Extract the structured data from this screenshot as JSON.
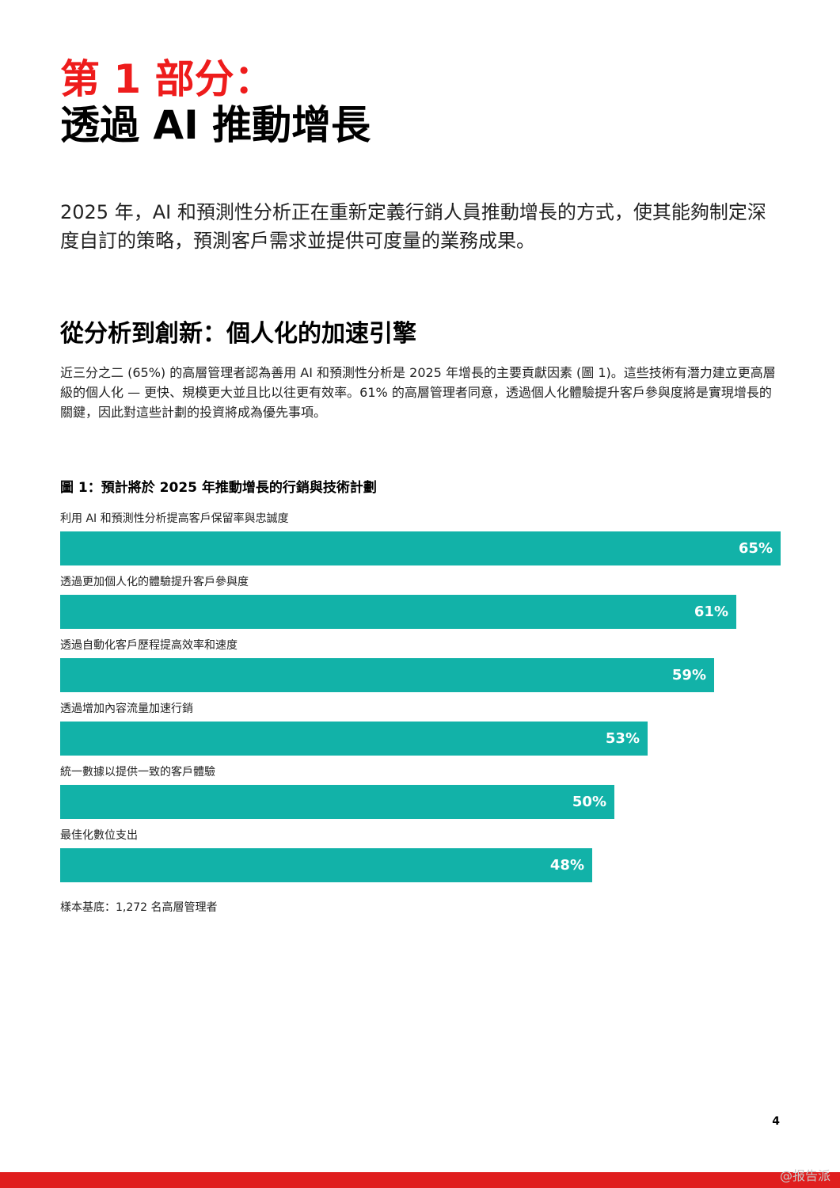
{
  "heading": {
    "line1": "第 1 部分：",
    "line2": "透過 AI 推動增長"
  },
  "intro": "2025 年，AI 和預測性分析正在重新定義行銷人員推動增長的方式，使其能夠制定深度自訂的策略，預測客戶需求並提供可度量的業務成果。",
  "section": {
    "heading": "從分析到創新：個人化的加速引擎",
    "body": "近三分之二 (65%) 的高層管理者認為善用 AI 和預測性分析是 2025 年增長的主要貢獻因素 (圖 1)。這些技術有潛力建立更高層級的個人化 — 更快、規模更大並且比以往更有效率。61% 的高層管理者同意，透過個人化體驗提升客戶參與度將是實現增長的關鍵，因此對這些計劃的投資將成為優先事項。"
  },
  "figure": {
    "title": "圖 1：預計將於 2025 年推動增長的行銷與技術計劃",
    "note": "樣本基底：1,272 名高層管理者"
  },
  "chart_data": {
    "type": "bar",
    "orientation": "horizontal",
    "title": "圖 1：預計將於 2025 年推動增長的行銷與技術計劃",
    "categories": [
      "利用 AI 和預測性分析提高客戶保留率與忠誠度",
      "透過更加個人化的體驗提升客戶參與度",
      "透過自動化客戶歷程提高效率和速度",
      "透過增加內容流量加速行銷",
      "統一數據以提供一致的客戶體驗",
      "最佳化數位支出"
    ],
    "values": [
      65,
      61,
      59,
      53,
      50,
      48
    ],
    "value_labels": [
      "65%",
      "61%",
      "59%",
      "53%",
      "50%",
      "48%"
    ],
    "unit": "%",
    "bar_color": "#12b2a8",
    "grid": false,
    "legend": "none"
  },
  "colors": {
    "accent_red": "#ee1c1c",
    "bar": "#12b2a8",
    "footer_bar": "#e01e1e"
  },
  "page_number": "4",
  "watermark": "@报告派"
}
